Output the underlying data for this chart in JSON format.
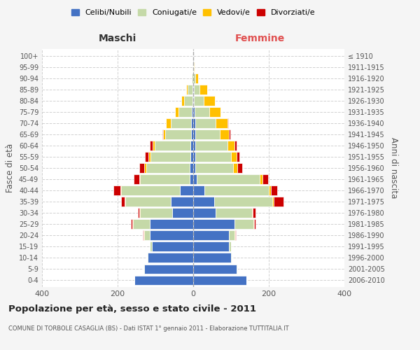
{
  "age_groups": [
    "0-4",
    "5-9",
    "10-14",
    "15-19",
    "20-24",
    "25-29",
    "30-34",
    "35-39",
    "40-44",
    "45-49",
    "50-54",
    "55-59",
    "60-64",
    "65-69",
    "70-74",
    "75-79",
    "80-84",
    "85-89",
    "90-94",
    "95-99",
    "100+"
  ],
  "birth_years": [
    "2006-2010",
    "2001-2005",
    "1996-2000",
    "1991-1995",
    "1986-1990",
    "1981-1985",
    "1976-1980",
    "1971-1975",
    "1966-1970",
    "1961-1965",
    "1956-1960",
    "1951-1955",
    "1946-1950",
    "1941-1945",
    "1936-1940",
    "1931-1935",
    "1926-1930",
    "1921-1925",
    "1916-1920",
    "1911-1915",
    "≤ 1910"
  ],
  "male_celibe": [
    155,
    130,
    120,
    110,
    115,
    115,
    55,
    60,
    35,
    10,
    10,
    8,
    7,
    5,
    5,
    3,
    2,
    2,
    0,
    0,
    0
  ],
  "male_coniugato": [
    0,
    2,
    2,
    5,
    15,
    45,
    85,
    120,
    155,
    130,
    115,
    105,
    95,
    70,
    55,
    35,
    22,
    12,
    3,
    1,
    0
  ],
  "male_vedovo": [
    0,
    0,
    0,
    0,
    1,
    1,
    2,
    2,
    2,
    2,
    5,
    5,
    5,
    5,
    12,
    10,
    8,
    5,
    1,
    0,
    0
  ],
  "male_divorziato": [
    0,
    0,
    0,
    0,
    2,
    3,
    5,
    8,
    20,
    15,
    12,
    10,
    8,
    2,
    0,
    0,
    0,
    0,
    0,
    0,
    0
  ],
  "female_celibe": [
    140,
    115,
    100,
    95,
    95,
    110,
    60,
    55,
    30,
    10,
    5,
    5,
    5,
    5,
    5,
    3,
    2,
    2,
    0,
    0,
    0
  ],
  "female_coniugato": [
    0,
    2,
    2,
    5,
    15,
    50,
    95,
    155,
    170,
    165,
    100,
    95,
    85,
    65,
    55,
    40,
    25,
    15,
    5,
    2,
    0
  ],
  "female_vedovo": [
    0,
    0,
    0,
    0,
    1,
    1,
    2,
    3,
    5,
    8,
    12,
    15,
    20,
    25,
    30,
    30,
    30,
    20,
    8,
    2,
    0
  ],
  "female_divorziato": [
    0,
    0,
    0,
    0,
    2,
    3,
    8,
    25,
    18,
    15,
    12,
    8,
    5,
    3,
    2,
    0,
    0,
    0,
    0,
    0,
    0
  ],
  "colors": {
    "celibe": "#4472c4",
    "coniugato": "#c5d9a8",
    "vedovo": "#ffc000",
    "divorziato": "#cc0000"
  },
  "title": "Popolazione per età, sesso e stato civile - 2011",
  "subtitle": "COMUNE DI TORBOLE CASAGLIA (BS) - Dati ISTAT 1° gennaio 2011 - Elaborazione TUTTITALIA.IT",
  "xlabel_left": "Maschi",
  "xlabel_right": "Femmine",
  "ylabel_left": "Fasce di età",
  "ylabel_right": "Anni di nascita",
  "xlim": 400,
  "legend_labels": [
    "Celibi/Nubili",
    "Coniugati/e",
    "Vedovi/e",
    "Divorziati/e"
  ],
  "bg_color": "#f5f5f5",
  "plot_bg": "#ffffff",
  "grid_color": "#cccccc"
}
